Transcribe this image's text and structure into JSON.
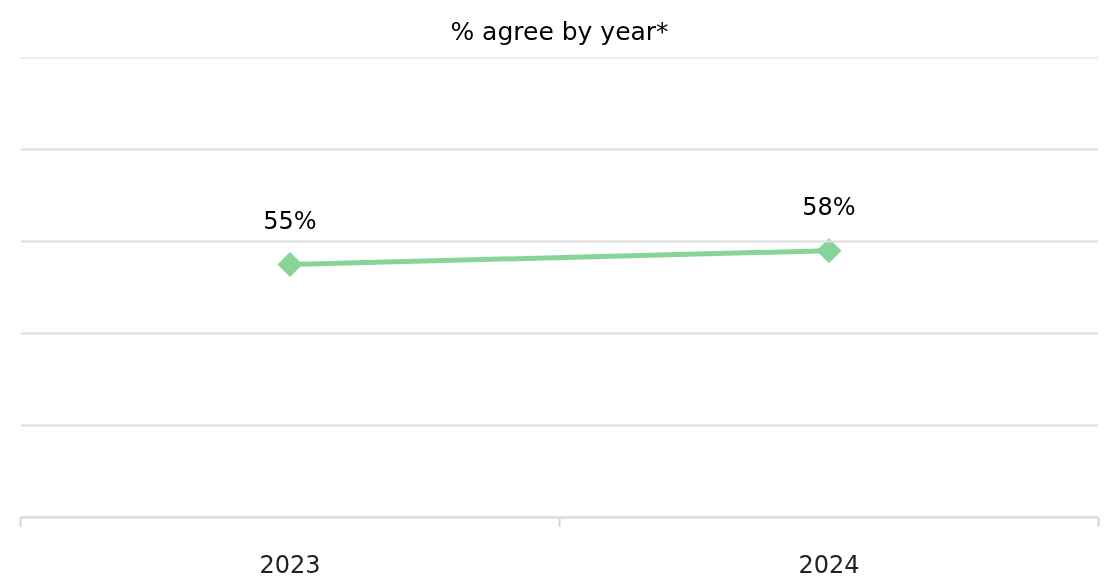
{
  "chart_data": {
    "type": "line",
    "title": "% agree by year*",
    "categories": [
      "2023",
      "2024"
    ],
    "series": [
      {
        "color": "#88d498",
        "values": [
          55,
          58
        ],
        "value_labels": [
          "55%",
          "58%"
        ]
      }
    ],
    "ylim": [
      0,
      100
    ],
    "yticks": [
      0,
      20,
      40,
      60,
      80,
      100
    ],
    "grid": "y",
    "tick_labels": "x",
    "marker": "diamond",
    "line_style": "solid"
  }
}
